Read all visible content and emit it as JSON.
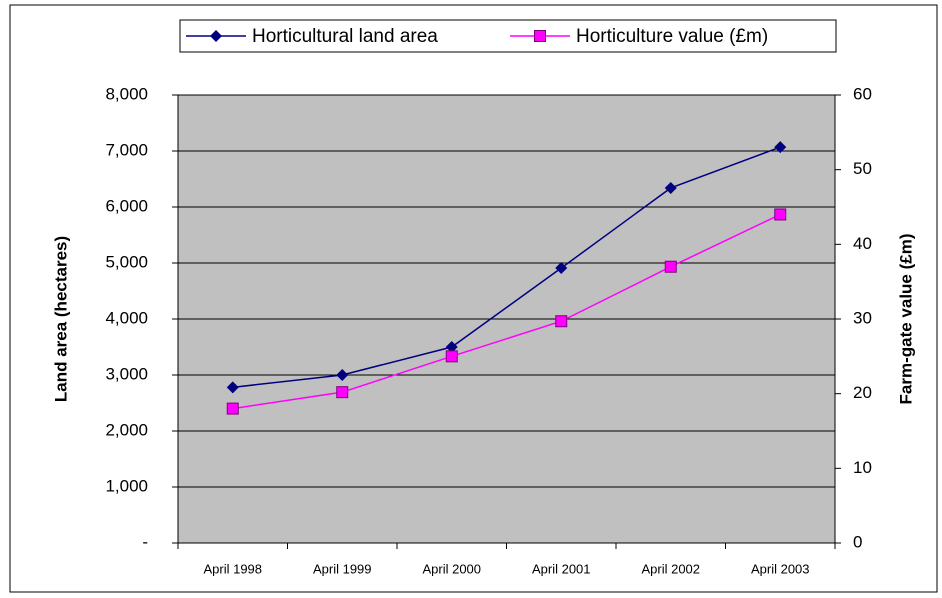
{
  "chart_data": {
    "type": "line",
    "categories": [
      "April 1998",
      "April 1999",
      "April 2000",
      "April 2001",
      "April 2002",
      "April 2003"
    ],
    "series": [
      {
        "name": "Horticultural land area",
        "color": "#000080",
        "marker": "diamond",
        "values": [
          2780,
          3000,
          3500,
          4910,
          6340,
          7070
        ]
      },
      {
        "name": "Horticulture value (£m)",
        "color": "#ff00ff",
        "marker": "square",
        "axis": "y2",
        "values": [
          18,
          20.2,
          25,
          29.7,
          37,
          44
        ]
      }
    ],
    "ylabel": "Land area (hectares)",
    "y2label": "Farm-gate value (£m)",
    "ylim": [
      0,
      8000
    ],
    "yticks": [
      {
        "value": 0,
        "label": "-"
      },
      {
        "value": 1000,
        "label": "1,000"
      },
      {
        "value": 2000,
        "label": "2,000"
      },
      {
        "value": 3000,
        "label": "3,000"
      },
      {
        "value": 4000,
        "label": "4,000"
      },
      {
        "value": 5000,
        "label": "5,000"
      },
      {
        "value": 6000,
        "label": "6,000"
      },
      {
        "value": 7000,
        "label": "7,000"
      },
      {
        "value": 8000,
        "label": "8,000"
      }
    ],
    "y2lim": [
      0,
      60
    ],
    "y2ticks": [
      0,
      10,
      20,
      30,
      40,
      50,
      60
    ],
    "grid": true,
    "plot_background": "#c0c0c0",
    "legend": "top"
  }
}
